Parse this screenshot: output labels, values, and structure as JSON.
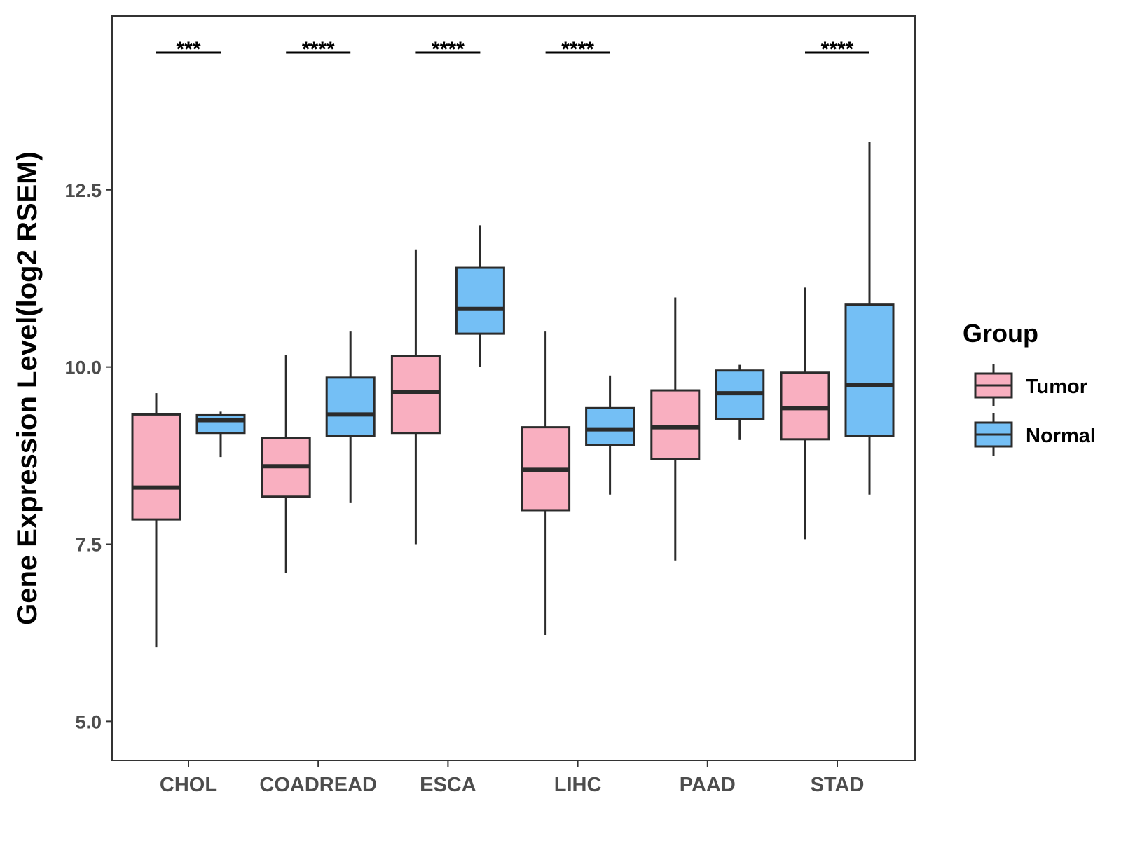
{
  "chart_data": {
    "type": "boxplot",
    "title": "",
    "xlabel": "",
    "ylabel": "Gene Expression Level(log2 RSEM)",
    "ylim": [
      4.45,
      14.95
    ],
    "yticks": [
      5.0,
      7.5,
      10.0,
      12.5
    ],
    "ytick_labels": [
      "5.0",
      "7.5",
      "10.0",
      "12.5"
    ],
    "categories": [
      "CHOL",
      "COADREAD",
      "ESCA",
      "LIHC",
      "PAAD",
      "STAD"
    ],
    "legend": {
      "title": "Group",
      "position": "right",
      "entries": [
        {
          "name": "Tumor",
          "color": "#F9AFC0"
        },
        {
          "name": "Normal",
          "color": "#74BFF5"
        }
      ]
    },
    "series": [
      {
        "name": "Tumor",
        "color": "#F9AFC0",
        "boxes": [
          {
            "min": 6.05,
            "q1": 7.85,
            "median": 8.3,
            "q3": 9.33,
            "max": 9.63
          },
          {
            "min": 7.1,
            "q1": 8.17,
            "median": 8.6,
            "q3": 9.0,
            "max": 10.17
          },
          {
            "min": 7.5,
            "q1": 9.07,
            "median": 9.65,
            "q3": 10.15,
            "max": 11.65
          },
          {
            "min": 6.22,
            "q1": 7.98,
            "median": 8.55,
            "q3": 9.15,
            "max": 10.5
          },
          {
            "min": 7.27,
            "q1": 8.7,
            "median": 9.15,
            "q3": 9.67,
            "max": 10.98
          },
          {
            "min": 7.57,
            "q1": 8.98,
            "median": 9.42,
            "q3": 9.92,
            "max": 11.12
          }
        ]
      },
      {
        "name": "Normal",
        "color": "#74BFF5",
        "boxes": [
          {
            "min": 8.73,
            "q1": 9.07,
            "median": 9.25,
            "q3": 9.32,
            "max": 9.37
          },
          {
            "min": 8.08,
            "q1": 9.03,
            "median": 9.33,
            "q3": 9.85,
            "max": 10.5
          },
          {
            "min": 10.0,
            "q1": 10.47,
            "median": 10.82,
            "q3": 11.4,
            "max": 12.0
          },
          {
            "min": 8.2,
            "q1": 8.9,
            "median": 9.12,
            "q3": 9.42,
            "max": 9.88
          },
          {
            "min": 8.97,
            "q1": 9.27,
            "median": 9.63,
            "q3": 9.95,
            "max": 10.03
          },
          {
            "min": 8.2,
            "q1": 9.03,
            "median": 9.75,
            "q3": 10.88,
            "max": 13.18
          }
        ]
      }
    ],
    "significance": [
      "***",
      "****",
      "****",
      "****",
      "",
      "****"
    ]
  }
}
